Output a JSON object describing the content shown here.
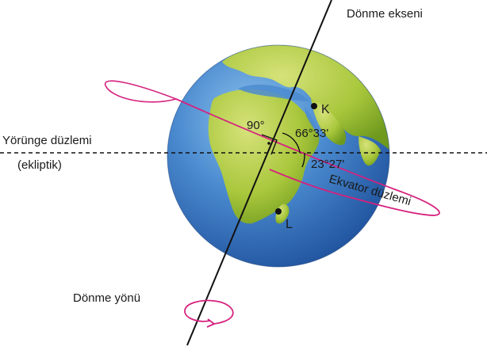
{
  "labels": {
    "rotation_axis": "Dönme ekseni",
    "orbit_plane_line1": "Yörünge düzlemi",
    "orbit_plane_line2": "(ekliptik)",
    "equator_plane": "Ekvator düzlemi",
    "rotation_direction": "Dönme yönü",
    "angle_right": "90°",
    "angle_axis_tilt": "66°33'",
    "angle_equator_tilt": "23°27'",
    "point_k": "K",
    "point_l": "L"
  },
  "colors": {
    "ocean": "#3f7fc4",
    "land": "#a8c83c",
    "equator": "#d6217e",
    "axis": "#111111"
  }
}
